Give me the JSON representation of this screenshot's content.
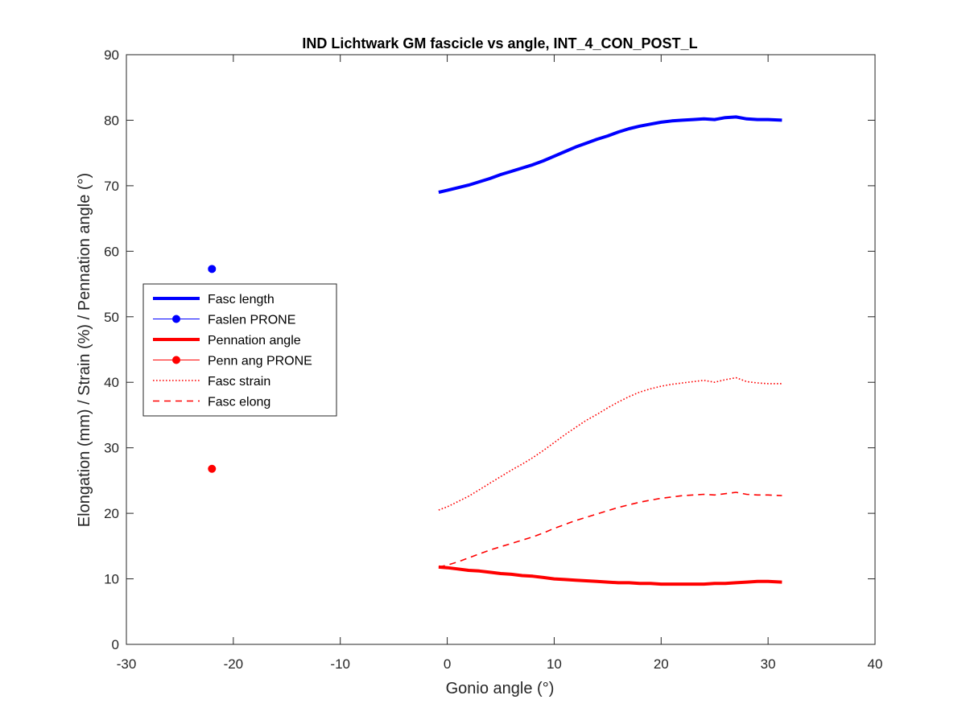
{
  "chart_data": {
    "type": "line",
    "title": "IND Lichtwark GM fascicle vs angle, INT_4_CON_POST_L",
    "xlabel": "Gonio angle (°)",
    "ylabel": "Elongation (mm) / Strain (%) / Pennation angle (°)",
    "xlim": [
      -30,
      40
    ],
    "ylim": [
      0,
      90
    ],
    "xticks": [
      -30,
      -20,
      -10,
      0,
      10,
      20,
      30,
      40
    ],
    "yticks": [
      0,
      10,
      20,
      30,
      40,
      50,
      60,
      70,
      80,
      90
    ],
    "grid": false,
    "legend_position": "center-left",
    "series": [
      {
        "name": "Fasc length",
        "style": "solid-thick",
        "color": "#0000ff",
        "x": [
          -0.8,
          0,
          1,
          2,
          3,
          4,
          5,
          6,
          7,
          8,
          9,
          10,
          11,
          12,
          13,
          14,
          15,
          16,
          17,
          18,
          19,
          20,
          21,
          22,
          23,
          24,
          25,
          26,
          27,
          28,
          29,
          30,
          31.3
        ],
        "y": [
          69.0,
          69.3,
          69.7,
          70.1,
          70.6,
          71.1,
          71.7,
          72.2,
          72.7,
          73.2,
          73.8,
          74.5,
          75.2,
          75.9,
          76.5,
          77.1,
          77.6,
          78.2,
          78.7,
          79.1,
          79.4,
          79.7,
          79.9,
          80.0,
          80.1,
          80.2,
          80.1,
          80.4,
          80.5,
          80.2,
          80.1,
          80.1,
          80.0
        ]
      },
      {
        "name": "Faslen PRONE",
        "style": "marker",
        "color": "#0000ff",
        "x": [
          -22
        ],
        "y": [
          57.3
        ]
      },
      {
        "name": "Pennation angle",
        "style": "solid-thick",
        "color": "#ff0000",
        "x": [
          -0.8,
          0,
          1,
          2,
          3,
          4,
          5,
          6,
          7,
          8,
          9,
          10,
          11,
          12,
          13,
          14,
          15,
          16,
          17,
          18,
          19,
          20,
          21,
          22,
          23,
          24,
          25,
          26,
          27,
          28,
          29,
          30,
          31.3
        ],
        "y": [
          11.8,
          11.7,
          11.5,
          11.3,
          11.2,
          11.0,
          10.8,
          10.7,
          10.5,
          10.4,
          10.2,
          10.0,
          9.9,
          9.8,
          9.7,
          9.6,
          9.5,
          9.4,
          9.4,
          9.3,
          9.3,
          9.2,
          9.2,
          9.2,
          9.2,
          9.2,
          9.3,
          9.3,
          9.4,
          9.5,
          9.6,
          9.6,
          9.5
        ]
      },
      {
        "name": "Penn ang PRONE",
        "style": "marker",
        "color": "#ff0000",
        "x": [
          -22
        ],
        "y": [
          26.8
        ]
      },
      {
        "name": "Fasc strain",
        "style": "dotted",
        "color": "#ff0000",
        "x": [
          -0.8,
          0,
          1,
          2,
          3,
          4,
          5,
          6,
          7,
          8,
          9,
          10,
          11,
          12,
          13,
          14,
          15,
          16,
          17,
          18,
          19,
          20,
          21,
          22,
          23,
          24,
          25,
          26,
          27,
          28,
          29,
          30,
          31.3
        ],
        "y": [
          20.5,
          21.0,
          21.8,
          22.6,
          23.6,
          24.6,
          25.6,
          26.6,
          27.5,
          28.5,
          29.6,
          30.8,
          32.0,
          33.1,
          34.2,
          35.1,
          36.1,
          37.0,
          37.8,
          38.5,
          39.0,
          39.4,
          39.7,
          39.9,
          40.1,
          40.3,
          40.0,
          40.4,
          40.7,
          40.1,
          39.9,
          39.8,
          39.8
        ]
      },
      {
        "name": "Fasc elong",
        "style": "dashed",
        "color": "#ff0000",
        "x": [
          -0.8,
          0,
          1,
          2,
          3,
          4,
          5,
          6,
          7,
          8,
          9,
          10,
          11,
          12,
          13,
          14,
          15,
          16,
          17,
          18,
          19,
          20,
          21,
          22,
          23,
          24,
          25,
          26,
          27,
          28,
          29,
          30,
          31.3
        ],
        "y": [
          11.8,
          12.1,
          12.6,
          13.2,
          13.8,
          14.4,
          14.9,
          15.4,
          15.9,
          16.4,
          17.0,
          17.7,
          18.3,
          18.9,
          19.4,
          19.9,
          20.4,
          20.9,
          21.3,
          21.7,
          22.0,
          22.3,
          22.5,
          22.7,
          22.8,
          22.9,
          22.8,
          23.0,
          23.2,
          22.9,
          22.8,
          22.8,
          22.7
        ]
      }
    ]
  }
}
